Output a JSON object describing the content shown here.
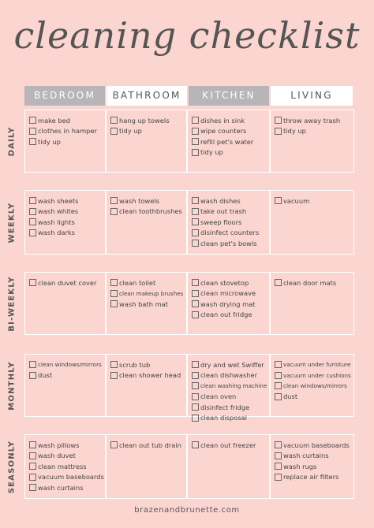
{
  "title": "cleaning checklist",
  "columns": [
    "BEDROOM",
    "BATHROOM",
    "KITCHEN",
    "LIVING"
  ],
  "rows": [
    {
      "label": "DAILY",
      "cells": [
        [
          "make bed",
          "clothes in hamper",
          "tidy up"
        ],
        [
          "hang up towels",
          "tidy up"
        ],
        [
          "dishes in sink",
          "wipe counters",
          "refill pet's water",
          "tidy up"
        ],
        [
          "throw away trash",
          "tidy up"
        ]
      ]
    },
    {
      "label": "WEEKLY",
      "cells": [
        [
          "wash sheets",
          "wash whites",
          "wash lights",
          "wash darks"
        ],
        [
          "wash towels",
          "clean toothbrushes"
        ],
        [
          "wash dishes",
          "take out trash",
          "sweep floors",
          "disinfect counters",
          "clean pet's bowls"
        ],
        [
          "vacuum"
        ]
      ]
    },
    {
      "label": "BI-WEEKLY",
      "cells": [
        [
          "clean duvet cover"
        ],
        [
          "clean toilet",
          "clean makeup brushes",
          "wash bath mat"
        ],
        [
          "clean stovetop",
          "clean microwave",
          "wash drying mat",
          "clean out fridge"
        ],
        [
          "clean door mats"
        ]
      ]
    },
    {
      "label": "MONTHLY",
      "cells": [
        [
          "clean windows/mirrors",
          "dust"
        ],
        [
          "scrub tub",
          "clean shower head"
        ],
        [
          "dry and wet Swiffer",
          "clean dishwasher",
          "clean washing machine",
          "clean oven",
          "disinfect fridge",
          "clean disposal"
        ],
        [
          "vacuum under furniture",
          "vacuum under cushions",
          "clean windows/mirrors",
          "dust"
        ]
      ]
    },
    {
      "label": "SEASONLY",
      "cells": [
        [
          "wash pillows",
          "wash duvet",
          "clean mattress",
          "vacuum baseboards",
          "wash curtains"
        ],
        [
          "clean out tub drain"
        ],
        [
          "clean out freezer"
        ],
        [
          "vacuum baseboards",
          "wash curtains",
          "wash rugs",
          "replace air filters"
        ]
      ]
    }
  ],
  "footer": "brazenandbrunette.com",
  "colors": {
    "background": "#fbd6d0",
    "header_gray": "#b7b5b8",
    "header_white": "#ffffff",
    "grid_line": "#ffffff",
    "text": "#444444"
  }
}
